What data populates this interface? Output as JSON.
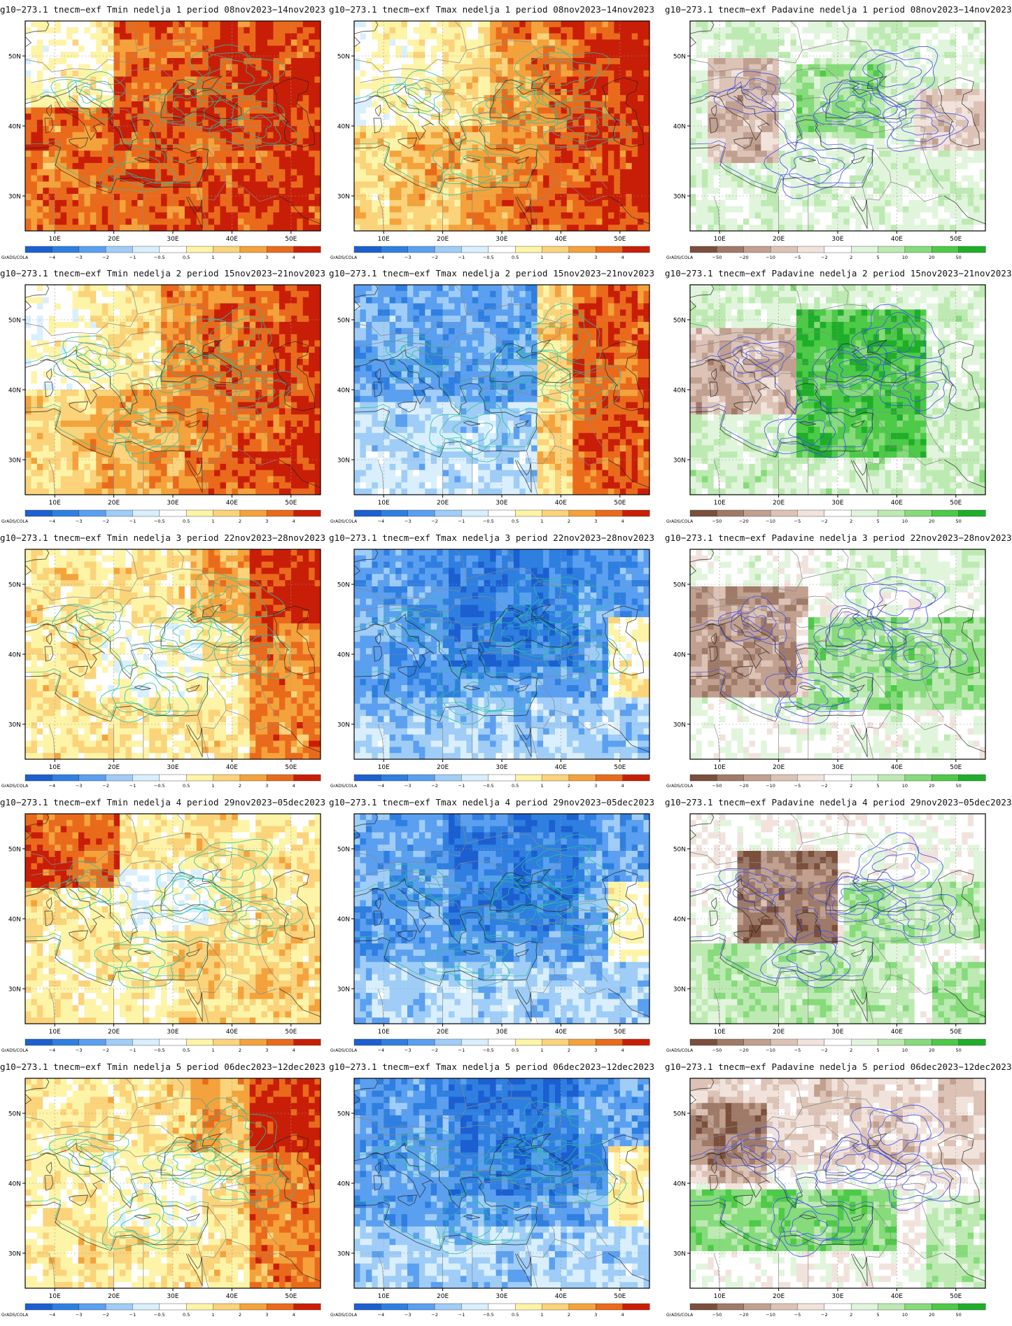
{
  "page": {
    "rows": [
      {
        "week": 1,
        "panels": [
          {
            "title": "g10−273.1 tnecm−exf Tmin nedelja 1 period 08nov2023−14nov2023",
            "variable": "Tmin",
            "palette": "temp",
            "pattern": "warm"
          },
          {
            "title": "g10−273.1 tnecm−exf Tmax nedelja 1 period 08nov2023−14nov2023",
            "variable": "Tmax",
            "palette": "temp",
            "pattern": "warm_east"
          },
          {
            "title": "g10−273.1 tnecm−exf Padavine nedelja 1 period 08nov2023−14nov2023",
            "variable": "Padavine",
            "palette": "precip",
            "pattern": "wet_mixed"
          }
        ]
      },
      {
        "week": 2,
        "panels": [
          {
            "title": "g10−273.1 tnecm−exf Tmin nedelja 2 period 15nov2023−21nov2023",
            "variable": "Tmin",
            "palette": "temp",
            "pattern": "warm_east"
          },
          {
            "title": "g10−273.1 tnecm−exf Tmax nedelja 2 period 15nov2023−21nov2023",
            "variable": "Tmax",
            "palette": "temp",
            "pattern": "cold_center_warm_east"
          },
          {
            "title": "g10−273.1 tnecm−exf Padavine nedelja 2 period 15nov2023−21nov2023",
            "variable": "Padavine",
            "palette": "precip",
            "pattern": "wet_center"
          }
        ]
      },
      {
        "week": 3,
        "panels": [
          {
            "title": "g10−273.1 tnecm−exf Tmin nedelja 3 period 22nov2023−28nov2023",
            "variable": "Tmin",
            "palette": "temp",
            "pattern": "mild_warm"
          },
          {
            "title": "g10−273.1 tnecm−exf Tmax nedelja 3 period 22nov2023−28nov2023",
            "variable": "Tmax",
            "palette": "temp",
            "pattern": "cold"
          },
          {
            "title": "g10−273.1 tnecm−exf Padavine nedelja 3 period 22nov2023−28nov2023",
            "variable": "Padavine",
            "palette": "precip",
            "pattern": "dry_west_wet_south"
          }
        ]
      },
      {
        "week": 4,
        "panels": [
          {
            "title": "g10−273.1 tnecm−exf Tmin nedelja 4 period 29nov2023−05dec2023",
            "variable": "Tmin",
            "palette": "temp",
            "pattern": "warm_west"
          },
          {
            "title": "g10−273.1 tnecm−exf Tmax nedelja 4 period 29nov2023−05dec2023",
            "variable": "Tmax",
            "palette": "temp",
            "pattern": "cold"
          },
          {
            "title": "g10−273.1 tnecm−exf Padavine nedelja 4 period 29nov2023−05dec2023",
            "variable": "Padavine",
            "palette": "precip",
            "pattern": "dry_center_wet_south"
          }
        ]
      },
      {
        "week": 5,
        "panels": [
          {
            "title": "g10−273.1 tnecm−exf Tmin nedelja 5 period 06dec2023−12dec2023",
            "variable": "Tmin",
            "palette": "temp",
            "pattern": "mild_warm"
          },
          {
            "title": "g10−273.1 tnecm−exf Tmax nedelja 5 period 06dec2023−12dec2023",
            "variable": "Tmax",
            "palette": "temp",
            "pattern": "cold"
          },
          {
            "title": "g10−273.1 tnecm−exf Padavine nedelja 5 period 06dec2023−12dec2023",
            "variable": "Padavine",
            "palette": "precip",
            "pattern": "dry_north_wet_south"
          }
        ]
      }
    ]
  },
  "map": {
    "lon_ticks": [
      "10E",
      "20E",
      "30E",
      "40E",
      "50E"
    ],
    "lat_ticks": [
      "50N",
      "40N",
      "30N"
    ],
    "lon_range": [
      5,
      55
    ],
    "lat_range": [
      25,
      55
    ]
  },
  "legends": {
    "credit": "GrADS/COLA",
    "temp": {
      "labels": [
        "−4",
        "−3",
        "−2",
        "−1",
        "−0.5",
        "0.5",
        "1",
        "2",
        "3",
        "4"
      ],
      "colors": [
        "#1c5fd1",
        "#2f7fe0",
        "#5b9ff0",
        "#9fcdf7",
        "#d9effd",
        "#ffffff",
        "#fdf4a8",
        "#fbd37a",
        "#f4a23c",
        "#ea6a1c",
        "#c81e08"
      ]
    },
    "precip": {
      "labels": [
        "−50",
        "−20",
        "−10",
        "−5",
        "−2",
        "2",
        "5",
        "10",
        "20",
        "50"
      ],
      "colors": [
        "#7b4f3c",
        "#a07a68",
        "#c1a090",
        "#dcc3b6",
        "#f1e3dc",
        "#ffffff",
        "#e1f5dc",
        "#bdeab2",
        "#86db7a",
        "#4dca48",
        "#1fae2a"
      ]
    }
  },
  "colors": {
    "contour_temp": "#2bbf9c",
    "contour_precip": "#3c4ee8",
    "coast": "#222222",
    "border": "#888888"
  }
}
